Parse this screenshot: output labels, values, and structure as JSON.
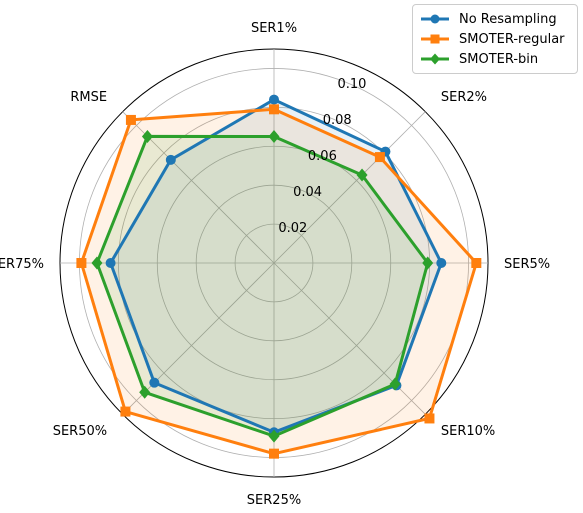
{
  "chart_data": {
    "type": "radar",
    "axes": [
      "SER1%",
      "SER2%",
      "SER5%",
      "SER10%",
      "SER25%",
      "SER50%",
      "SER75%",
      "RMSE"
    ],
    "r_ticks": [
      "0.02",
      "0.04",
      "0.06",
      "0.08",
      "0.10"
    ],
    "r_tick_values": [
      0.02,
      0.04,
      0.06,
      0.08,
      0.1
    ],
    "rlim": [
      0,
      0.11
    ],
    "grid": true,
    "legend": "top-right",
    "series": [
      {
        "name": "No Resampling",
        "color": "#1f77b4",
        "marker": "circle",
        "values": [
          0.084,
          0.081,
          0.086,
          0.089,
          0.087,
          0.087,
          0.084,
          0.075
        ]
      },
      {
        "name": "SMOTER-regular",
        "color": "#ff7f0e",
        "marker": "square",
        "values": [
          0.079,
          0.077,
          0.104,
          0.113,
          0.098,
          0.108,
          0.099,
          0.104
        ]
      },
      {
        "name": "SMOTER-bin",
        "color": "#2ca02c",
        "marker": "diamond",
        "values": [
          0.065,
          0.064,
          0.079,
          0.088,
          0.089,
          0.094,
          0.091,
          0.092
        ]
      }
    ]
  }
}
